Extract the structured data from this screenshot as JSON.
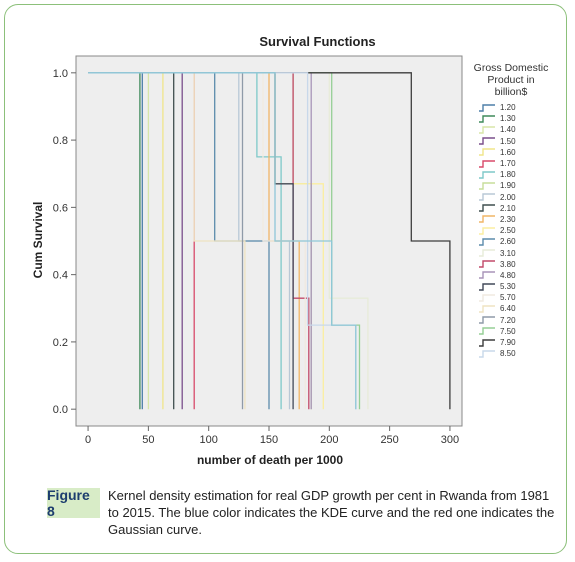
{
  "chart_data": {
    "type": "line",
    "step": true,
    "title": "Survival Functions",
    "xlabel": "number of death per 1000",
    "ylabel": "Cum Survival",
    "xlim": [
      -10,
      310
    ],
    "ylim": [
      -0.05,
      1.05
    ],
    "x_ticks": [
      "0",
      "50",
      "100",
      "150",
      "200",
      "250",
      "300"
    ],
    "x_tick_values": [
      0,
      50,
      100,
      150,
      200,
      250,
      300
    ],
    "y_ticks": [
      "0.0",
      "0.2",
      "0.4",
      "0.6",
      "0.8",
      "1.0"
    ],
    "y_tick_values": [
      0,
      0.2,
      0.4,
      0.6,
      0.8,
      1.0
    ],
    "grid": false,
    "legend_title": "Gross Domestic Product in billion$",
    "legend_position": "right",
    "series": [
      {
        "name": "1.20",
        "color": "#4d7fa8",
        "x": [
          0,
          45,
          45
        ],
        "y": [
          1,
          1,
          0
        ]
      },
      {
        "name": "1.30",
        "color": "#3e8a5a",
        "x": [
          0,
          43,
          43
        ],
        "y": [
          1,
          1,
          0
        ]
      },
      {
        "name": "1.40",
        "color": "#d8e6a8",
        "x": [
          0,
          50,
          50
        ],
        "y": [
          1,
          1,
          0
        ]
      },
      {
        "name": "1.50",
        "color": "#7a4e8c",
        "x": [
          0,
          78,
          78
        ],
        "y": [
          1,
          1,
          0
        ]
      },
      {
        "name": "1.60",
        "color": "#f0e58a",
        "x": [
          0,
          62,
          62
        ],
        "y": [
          1,
          1,
          0
        ]
      },
      {
        "name": "1.70",
        "color": "#d84a6a",
        "x": [
          0,
          88,
          88
        ],
        "y": [
          1,
          1,
          0
        ]
      },
      {
        "name": "1.80",
        "color": "#7fc9c9",
        "x": [
          0,
          140,
          140,
          160,
          160
        ],
        "y": [
          1,
          1,
          0.75,
          0.75,
          0
        ]
      },
      {
        "name": "1.90",
        "color": "#c7dd9a",
        "x": [
          0,
          170,
          170,
          185,
          185
        ],
        "y": [
          1,
          1,
          0.67,
          0.67,
          0
        ]
      },
      {
        "name": "2.00",
        "color": "#b8c8d6",
        "x": [
          0,
          125,
          125,
          167,
          167
        ],
        "y": [
          1,
          1,
          0.5,
          0.5,
          0
        ]
      },
      {
        "name": "2.10",
        "color": "#3f4f4f",
        "x": [
          0,
          71,
          71
        ],
        "y": [
          1,
          1,
          0
        ]
      },
      {
        "name": "2.30",
        "color": "#f1b566",
        "x": [
          0,
          150,
          150,
          175,
          175
        ],
        "y": [
          1,
          1,
          0.5,
          0.5,
          0
        ]
      },
      {
        "name": "2.50",
        "color": "#fbeea0",
        "x": [
          0,
          155,
          155,
          195,
          195
        ],
        "y": [
          1,
          1,
          0.67,
          0.67,
          0
        ]
      },
      {
        "name": "2.60",
        "color": "#5c8cac",
        "x": [
          0,
          105,
          105,
          150,
          150
        ],
        "y": [
          1,
          1,
          0.5,
          0.5,
          0
        ]
      },
      {
        "name": "3.10",
        "color": "#e7ecd9",
        "x": [
          0,
          200,
          200,
          232,
          232
        ],
        "y": [
          1,
          1,
          0.33,
          0.33,
          0
        ]
      },
      {
        "name": "3.80",
        "color": "#c24a6a",
        "x": [
          0,
          170,
          170,
          183,
          183
        ],
        "y": [
          1,
          1,
          0.33,
          0.33,
          0
        ]
      },
      {
        "name": "4.80",
        "color": "#a894b8",
        "x": [
          0,
          185,
          185
        ],
        "y": [
          1,
          1,
          0
        ]
      },
      {
        "name": "5.30",
        "color": "#404858",
        "x": [
          0,
          155,
          155,
          170,
          170
        ],
        "y": [
          1,
          1,
          0.67,
          0.67,
          0
        ]
      },
      {
        "name": "5.70",
        "color": "#f0eae0",
        "x": [
          0,
          145,
          145,
          180,
          180
        ],
        "y": [
          1,
          1,
          0.5,
          0.5,
          0
        ]
      },
      {
        "name": "6.40",
        "color": "#efe3c2",
        "x": [
          0,
          88,
          88,
          130,
          130
        ],
        "y": [
          1,
          1,
          0.5,
          0.5,
          0
        ]
      },
      {
        "name": "7.20",
        "color": "#8f9aa8",
        "x": [
          0,
          128,
          128
        ],
        "y": [
          1,
          1,
          0
        ]
      },
      {
        "name": "7.50",
        "color": "#95cf95",
        "x": [
          0,
          202,
          202,
          225,
          225
        ],
        "y": [
          1,
          1,
          0.25,
          0.25,
          0
        ]
      },
      {
        "name": "7.90",
        "color": "#3d3d3d",
        "x": [
          0,
          268,
          268,
          300,
          300
        ],
        "y": [
          1,
          1,
          0.5,
          0.5,
          0
        ]
      },
      {
        "name": "8.50",
        "color": "#c8d8ea",
        "x": [
          0,
          182,
          182,
          222,
          222
        ],
        "y": [
          1,
          1,
          0.25,
          0.25,
          0
        ]
      },
      {
        "name": "",
        "color": "#8ec7d8",
        "x": [
          0,
          155,
          155,
          202,
          202,
          222,
          222
        ],
        "y": [
          1,
          1,
          0.5,
          0.5,
          0.25,
          0.25,
          0
        ]
      }
    ]
  },
  "caption": {
    "label": "Figure 8",
    "text": "Kernel density estimation for real GDP growth per cent in Rwanda from 1981 to 2015. The blue color indicates the KDE curve and the red one indicates the Gaussian curve."
  },
  "colors": {
    "frame": "#8cc07a",
    "label_bg": "#d8ecc7",
    "label_text": "#1c3d6e",
    "plot_bg": "#eeeeee"
  }
}
